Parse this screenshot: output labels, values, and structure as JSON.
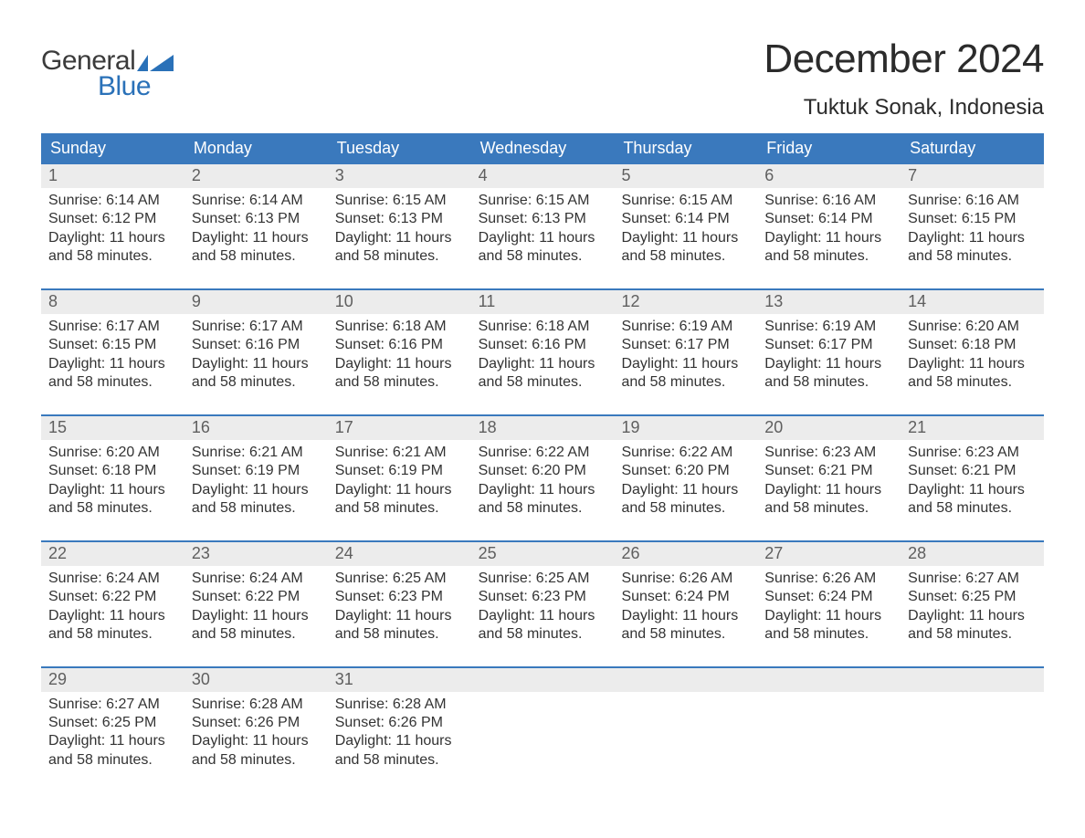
{
  "branding": {
    "line1": "General",
    "line2": "Blue",
    "flag_color": "#2a71b8"
  },
  "header": {
    "month_title": "December 2024",
    "location": "Tuktuk Sonak, Indonesia"
  },
  "colors": {
    "header_bg": "#3a79bd",
    "header_text": "#ffffff",
    "week_border": "#3a79bd",
    "daynum_bg": "#ececec",
    "daynum_text": "#5f5f5f",
    "body_text": "#333333",
    "page_bg": "#ffffff",
    "title_text": "#2b2b2b"
  },
  "typography": {
    "month_title_fontsize": 44,
    "location_fontsize": 24,
    "dow_fontsize": 18,
    "daynum_fontsize": 18,
    "body_fontsize": 16,
    "font_family": "Arial"
  },
  "calendar": {
    "days_of_week": [
      "Sunday",
      "Monday",
      "Tuesday",
      "Wednesday",
      "Thursday",
      "Friday",
      "Saturday"
    ],
    "label_sunrise": "Sunrise:",
    "label_sunset": "Sunset:",
    "label_daylight_l1": "Daylight: 11 hours",
    "label_daylight_l2": "and 58 minutes.",
    "weeks": [
      [
        {
          "n": "1",
          "sunrise": "6:14 AM",
          "sunset": "6:12 PM"
        },
        {
          "n": "2",
          "sunrise": "6:14 AM",
          "sunset": "6:13 PM"
        },
        {
          "n": "3",
          "sunrise": "6:15 AM",
          "sunset": "6:13 PM"
        },
        {
          "n": "4",
          "sunrise": "6:15 AM",
          "sunset": "6:13 PM"
        },
        {
          "n": "5",
          "sunrise": "6:15 AM",
          "sunset": "6:14 PM"
        },
        {
          "n": "6",
          "sunrise": "6:16 AM",
          "sunset": "6:14 PM"
        },
        {
          "n": "7",
          "sunrise": "6:16 AM",
          "sunset": "6:15 PM"
        }
      ],
      [
        {
          "n": "8",
          "sunrise": "6:17 AM",
          "sunset": "6:15 PM"
        },
        {
          "n": "9",
          "sunrise": "6:17 AM",
          "sunset": "6:16 PM"
        },
        {
          "n": "10",
          "sunrise": "6:18 AM",
          "sunset": "6:16 PM"
        },
        {
          "n": "11",
          "sunrise": "6:18 AM",
          "sunset": "6:16 PM"
        },
        {
          "n": "12",
          "sunrise": "6:19 AM",
          "sunset": "6:17 PM"
        },
        {
          "n": "13",
          "sunrise": "6:19 AM",
          "sunset": "6:17 PM"
        },
        {
          "n": "14",
          "sunrise": "6:20 AM",
          "sunset": "6:18 PM"
        }
      ],
      [
        {
          "n": "15",
          "sunrise": "6:20 AM",
          "sunset": "6:18 PM"
        },
        {
          "n": "16",
          "sunrise": "6:21 AM",
          "sunset": "6:19 PM"
        },
        {
          "n": "17",
          "sunrise": "6:21 AM",
          "sunset": "6:19 PM"
        },
        {
          "n": "18",
          "sunrise": "6:22 AM",
          "sunset": "6:20 PM"
        },
        {
          "n": "19",
          "sunrise": "6:22 AM",
          "sunset": "6:20 PM"
        },
        {
          "n": "20",
          "sunrise": "6:23 AM",
          "sunset": "6:21 PM"
        },
        {
          "n": "21",
          "sunrise": "6:23 AM",
          "sunset": "6:21 PM"
        }
      ],
      [
        {
          "n": "22",
          "sunrise": "6:24 AM",
          "sunset": "6:22 PM"
        },
        {
          "n": "23",
          "sunrise": "6:24 AM",
          "sunset": "6:22 PM"
        },
        {
          "n": "24",
          "sunrise": "6:25 AM",
          "sunset": "6:23 PM"
        },
        {
          "n": "25",
          "sunrise": "6:25 AM",
          "sunset": "6:23 PM"
        },
        {
          "n": "26",
          "sunrise": "6:26 AM",
          "sunset": "6:24 PM"
        },
        {
          "n": "27",
          "sunrise": "6:26 AM",
          "sunset": "6:24 PM"
        },
        {
          "n": "28",
          "sunrise": "6:27 AM",
          "sunset": "6:25 PM"
        }
      ],
      [
        {
          "n": "29",
          "sunrise": "6:27 AM",
          "sunset": "6:25 PM"
        },
        {
          "n": "30",
          "sunrise": "6:28 AM",
          "sunset": "6:26 PM"
        },
        {
          "n": "31",
          "sunrise": "6:28 AM",
          "sunset": "6:26 PM"
        },
        {
          "empty": true
        },
        {
          "empty": true
        },
        {
          "empty": true
        },
        {
          "empty": true
        }
      ]
    ]
  }
}
